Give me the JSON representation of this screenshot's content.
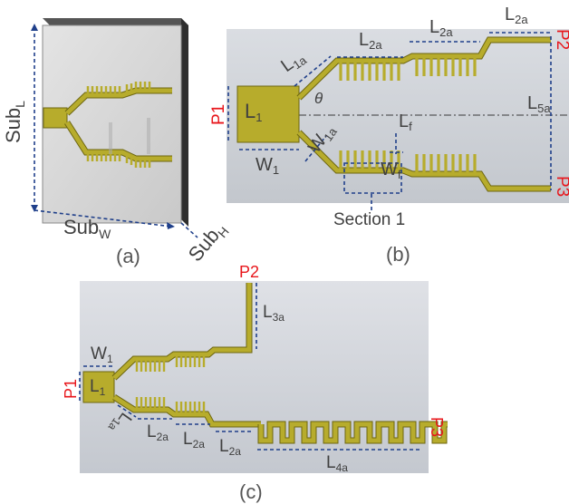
{
  "panel_a": {
    "caption": "(a)",
    "labels": {
      "sub_l": "Sub",
      "sub_l_sub": "L",
      "sub_w": "Sub",
      "sub_w_sub": "W",
      "sub_h": "Sub",
      "sub_h_sub": "H"
    }
  },
  "panel_b": {
    "caption": "(b)",
    "ports": {
      "p1": "P1",
      "p2": "P2",
      "p3": "P3"
    },
    "labels": {
      "l1a": "L",
      "l1a_sub": "1a",
      "l2a_1": "L",
      "l2a_1_sub": "2a",
      "l2a_2": "L",
      "l2a_2_sub": "2a",
      "l2a_3": "L",
      "l2a_3_sub": "2a",
      "l1": "L",
      "l1_sub": "1",
      "w1": "W",
      "w1_sub": "1",
      "theta": "θ",
      "w1a": "W",
      "w1a_sub": "1a",
      "lf": "L",
      "lf_sub": "f",
      "wf": "W",
      "wf_sub": "f",
      "l5a": "L",
      "l5a_sub": "5a",
      "section": "Section 1"
    }
  },
  "panel_c": {
    "caption": "(c)",
    "ports": {
      "p1": "P1",
      "p2": "P2",
      "p3": "P3"
    },
    "labels": {
      "w1": "W",
      "w1_sub": "1",
      "l1": "L",
      "l1_sub": "1",
      "l3a": "L",
      "l3a_sub": "3a",
      "l1a": "L",
      "l1a_sub": "1a",
      "l2a_1": "L",
      "l2a_1_sub": "2a",
      "l2a_2": "L",
      "l2a_2_sub": "2a",
      "l2a_3": "L",
      "l2a_3_sub": "2a",
      "l4a": "L",
      "l4a_sub": "4a"
    }
  }
}
